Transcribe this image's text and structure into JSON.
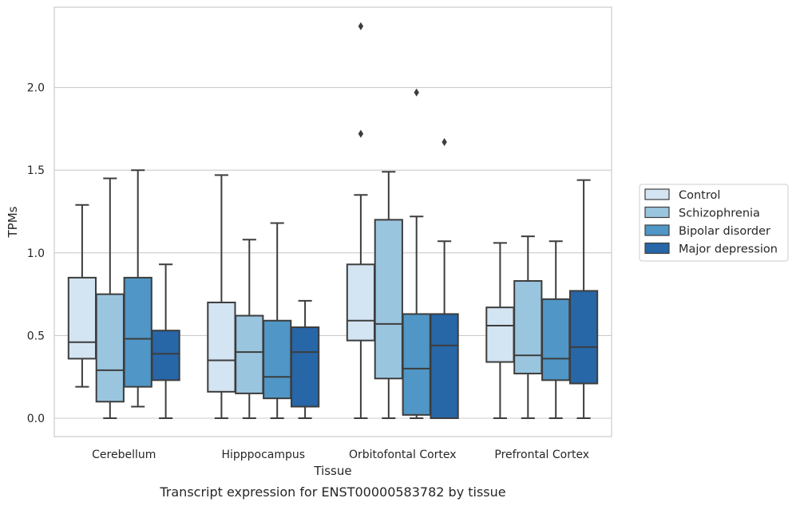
{
  "chart_data": {
    "type": "box",
    "title": "",
    "xlabel": "Tissue",
    "ylabel": "TPMs",
    "caption": "Transcript expression for ENST00000583782 by tissue",
    "ylim": [
      -0.11,
      2.47
    ],
    "yticks": [
      0.0,
      0.5,
      1.0,
      1.5,
      2.0
    ],
    "ytick_labels": [
      "0.0",
      "0.5",
      "1.0",
      "1.5",
      "2.0"
    ],
    "grid": "horizontal",
    "legend_position": "right",
    "categories": [
      "Cerebellum",
      "Hipppocampus",
      "Orbitofontal Cortex",
      "Prefrontal Cortex"
    ],
    "series": [
      {
        "name": "Control",
        "color": "#d3e4f2",
        "boxes": [
          {
            "whislo": 0.19,
            "q1": 0.36,
            "med": 0.46,
            "q3": 0.85,
            "whishi": 1.29,
            "fliers": []
          },
          {
            "whislo": 0.0,
            "q1": 0.16,
            "med": 0.35,
            "q3": 0.7,
            "whishi": 1.47,
            "fliers": []
          },
          {
            "whislo": 0.0,
            "q1": 0.47,
            "med": 0.59,
            "q3": 0.93,
            "whishi": 1.35,
            "fliers": [
              1.72,
              2.37
            ]
          },
          {
            "whislo": 0.0,
            "q1": 0.34,
            "med": 0.56,
            "q3": 0.67,
            "whishi": 1.06,
            "fliers": []
          }
        ]
      },
      {
        "name": "Schizophrenia",
        "color": "#9ac5df",
        "boxes": [
          {
            "whislo": 0.0,
            "q1": 0.1,
            "med": 0.29,
            "q3": 0.75,
            "whishi": 1.45,
            "fliers": []
          },
          {
            "whislo": 0.0,
            "q1": 0.15,
            "med": 0.4,
            "q3": 0.62,
            "whishi": 1.08,
            "fliers": []
          },
          {
            "whislo": 0.0,
            "q1": 0.24,
            "med": 0.57,
            "q3": 1.2,
            "whishi": 1.49,
            "fliers": []
          },
          {
            "whislo": 0.0,
            "q1": 0.27,
            "med": 0.38,
            "q3": 0.83,
            "whishi": 1.1,
            "fliers": []
          }
        ]
      },
      {
        "name": "Bipolar disorder",
        "color": "#5096c6",
        "boxes": [
          {
            "whislo": 0.07,
            "q1": 0.19,
            "med": 0.48,
            "q3": 0.85,
            "whishi": 1.5,
            "fliers": []
          },
          {
            "whislo": 0.0,
            "q1": 0.12,
            "med": 0.25,
            "q3": 0.59,
            "whishi": 1.18,
            "fliers": []
          },
          {
            "whislo": 0.0,
            "q1": 0.02,
            "med": 0.3,
            "q3": 0.63,
            "whishi": 1.22,
            "fliers": [
              1.97
            ]
          },
          {
            "whislo": 0.0,
            "q1": 0.23,
            "med": 0.36,
            "q3": 0.72,
            "whishi": 1.07,
            "fliers": []
          }
        ]
      },
      {
        "name": "Major depression",
        "color": "#2766a7",
        "boxes": [
          {
            "whislo": 0.0,
            "q1": 0.23,
            "med": 0.39,
            "q3": 0.53,
            "whishi": 0.93,
            "fliers": []
          },
          {
            "whislo": 0.0,
            "q1": 0.07,
            "med": 0.4,
            "q3": 0.55,
            "whishi": 0.71,
            "fliers": []
          },
          {
            "whislo": 0.0,
            "q1": 0.0,
            "med": 0.44,
            "q3": 0.63,
            "whishi": 1.07,
            "fliers": [
              1.67
            ]
          },
          {
            "whislo": 0.0,
            "q1": 0.21,
            "med": 0.43,
            "q3": 0.77,
            "whishi": 1.44,
            "fliers": []
          }
        ]
      }
    ]
  }
}
